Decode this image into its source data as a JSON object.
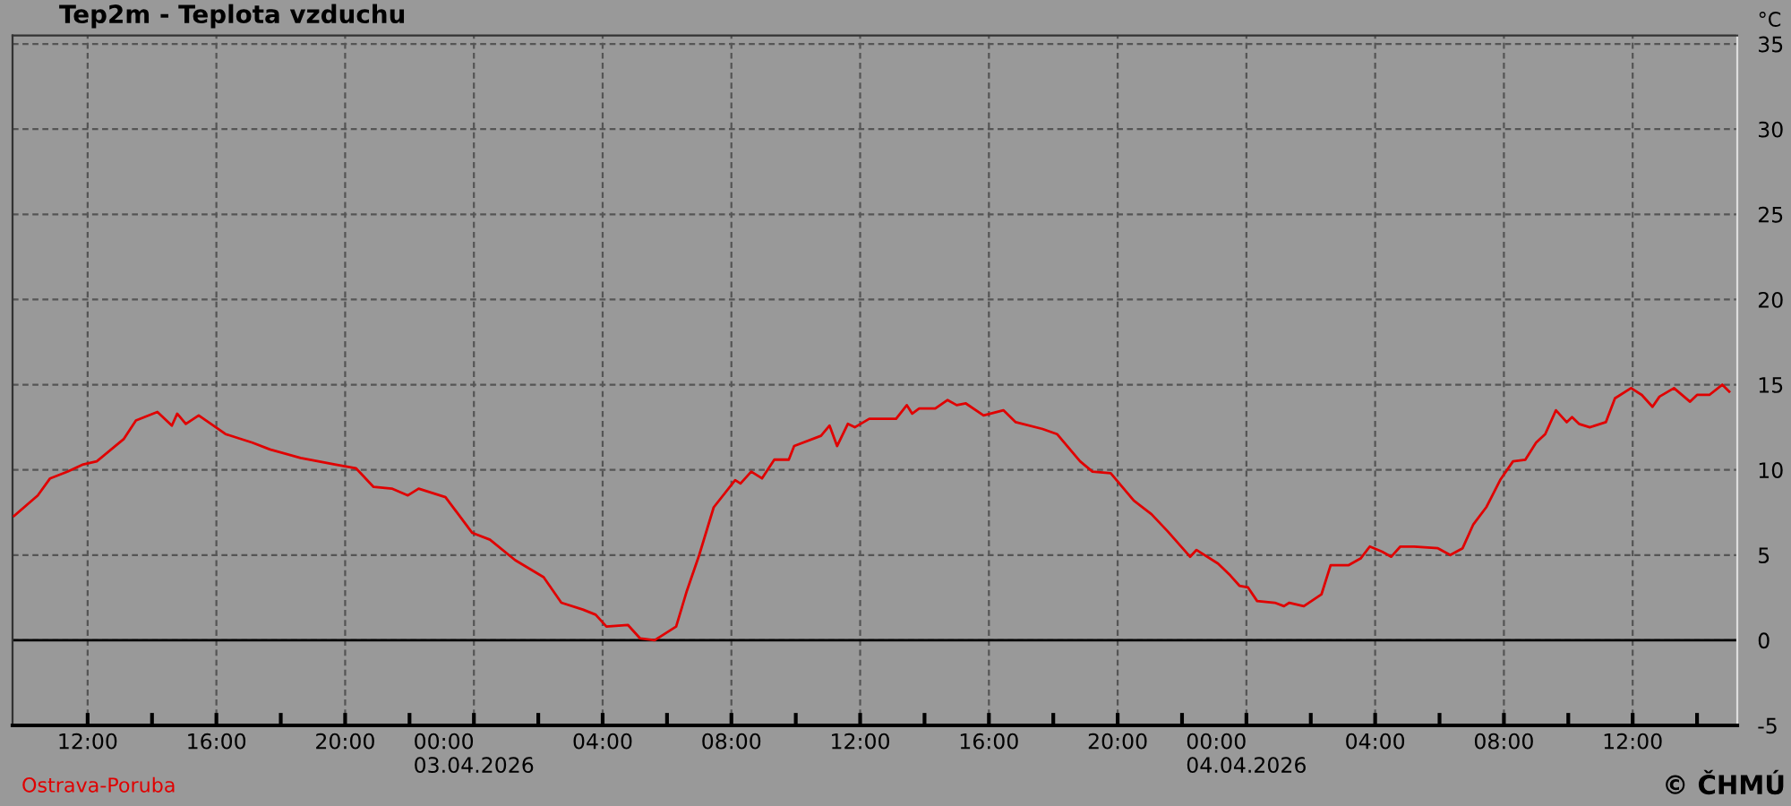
{
  "chart_data": {
    "type": "line",
    "title": "Tep2m - Teplota vzduchu",
    "ylabel": "°C",
    "annotations": [
      "Ostrava-Poruba",
      "© ČHMÚ"
    ],
    "x": [
      "2026-04-02T09:43",
      "2026-04-02T10:27",
      "2026-04-02T10:50",
      "2026-04-02T11:23",
      "2026-04-02T11:50",
      "2026-04-02T12:17",
      "2026-04-02T13:07",
      "2026-04-02T13:30",
      "2026-04-02T14:10",
      "2026-04-02T14:37",
      "2026-04-02T14:47",
      "2026-04-02T15:03",
      "2026-04-02T15:27",
      "2026-04-02T15:50",
      "2026-04-02T16:17",
      "2026-04-02T17:07",
      "2026-04-02T17:40",
      "2026-04-02T18:37",
      "2026-04-02T19:43",
      "2026-04-02T20:20",
      "2026-04-02T20:53",
      "2026-04-02T21:27",
      "2026-04-02T21:57",
      "2026-04-02T22:17",
      "2026-04-02T23:07",
      "2026-04-02T23:57",
      "2026-04-03T00:30",
      "2026-04-03T01:17",
      "2026-04-03T02:10",
      "2026-04-03T02:43",
      "2026-04-03T03:23",
      "2026-04-03T03:47",
      "2026-04-03T04:07",
      "2026-04-03T04:47",
      "2026-04-03T05:10",
      "2026-04-03T05:37",
      "2026-04-03T06:17",
      "2026-04-03T06:37",
      "2026-04-03T07:00",
      "2026-04-03T07:27",
      "2026-04-03T08:07",
      "2026-04-03T08:17",
      "2026-04-03T08:37",
      "2026-04-03T08:57",
      "2026-04-03T09:20",
      "2026-04-03T09:47",
      "2026-04-03T09:57",
      "2026-04-03T10:47",
      "2026-04-03T11:03",
      "2026-04-03T11:17",
      "2026-04-03T11:37",
      "2026-04-03T11:50",
      "2026-04-03T12:17",
      "2026-04-03T13:07",
      "2026-04-03T13:27",
      "2026-04-03T13:37",
      "2026-04-03T13:50",
      "2026-04-03T14:20",
      "2026-04-03T14:43",
      "2026-04-03T15:00",
      "2026-04-03T15:17",
      "2026-04-03T15:50",
      "2026-04-03T16:27",
      "2026-04-03T16:50",
      "2026-04-03T17:40",
      "2026-04-03T18:07",
      "2026-04-03T18:50",
      "2026-04-03T19:13",
      "2026-04-03T19:47",
      "2026-04-03T20:30",
      "2026-04-03T21:03",
      "2026-04-03T21:33",
      "2026-04-03T22:15",
      "2026-04-03T22:27",
      "2026-04-03T23:07",
      "2026-04-03T23:30",
      "2026-04-03T23:47",
      "2026-04-04T00:03",
      "2026-04-04T00:20",
      "2026-04-04T00:53",
      "2026-04-04T01:10",
      "2026-04-04T01:20",
      "2026-04-04T01:47",
      "2026-04-04T02:20",
      "2026-04-04T02:37",
      "2026-04-04T03:10",
      "2026-04-04T03:33",
      "2026-04-04T03:50",
      "2026-04-04T04:13",
      "2026-04-04T04:30",
      "2026-04-04T04:47",
      "2026-04-04T05:13",
      "2026-04-04T05:57",
      "2026-04-04T06:20",
      "2026-04-04T06:43",
      "2026-04-04T07:03",
      "2026-04-04T07:27",
      "2026-04-04T07:53",
      "2026-04-04T08:17",
      "2026-04-04T08:40",
      "2026-04-04T09:00",
      "2026-04-04T09:17",
      "2026-04-04T09:37",
      "2026-04-04T09:57",
      "2026-04-04T10:07",
      "2026-04-04T10:20",
      "2026-04-04T10:40",
      "2026-04-04T11:10",
      "2026-04-04T11:27",
      "2026-04-04T11:57",
      "2026-04-04T12:17",
      "2026-04-04T12:37",
      "2026-04-04T12:50",
      "2026-04-04T13:17",
      "2026-04-04T13:47",
      "2026-04-04T14:00",
      "2026-04-04T14:23",
      "2026-04-04T14:47",
      "2026-04-04T15:00"
    ],
    "series": [
      {
        "color": "#e00000",
        "values": [
          7.3,
          8.5,
          9.5,
          9.9,
          10.3,
          10.5,
          11.8,
          12.9,
          13.4,
          12.6,
          13.3,
          12.7,
          13.2,
          12.7,
          12.1,
          11.6,
          11.2,
          10.7,
          10.3,
          10.1,
          9.0,
          8.9,
          8.5,
          8.9,
          8.4,
          6.3,
          5.9,
          4.7,
          3.7,
          2.2,
          1.8,
          1.5,
          0.8,
          0.9,
          0.1,
          0.0,
          0.8,
          2.9,
          5.0,
          7.8,
          9.4,
          9.2,
          9.9,
          9.5,
          10.6,
          10.6,
          11.4,
          12.0,
          12.6,
          11.4,
          12.7,
          12.5,
          13.0,
          13.0,
          13.8,
          13.3,
          13.6,
          13.6,
          14.1,
          13.8,
          13.9,
          13.2,
          13.5,
          12.8,
          12.4,
          12.1,
          10.5,
          9.9,
          9.8,
          8.2,
          7.4,
          6.4,
          4.9,
          5.3,
          4.5,
          3.8,
          3.2,
          3.1,
          2.3,
          2.2,
          2.0,
          2.2,
          2.0,
          2.7,
          4.4,
          4.4,
          4.8,
          5.5,
          5.2,
          4.9,
          5.5,
          5.5,
          5.4,
          5.0,
          5.4,
          6.8,
          7.8,
          9.4,
          10.5,
          10.6,
          11.6,
          12.1,
          13.5,
          12.8,
          13.1,
          12.7,
          12.5,
          12.8,
          14.2,
          14.8,
          14.4,
          13.7,
          14.3,
          14.8,
          14.0,
          14.4,
          14.4,
          15.0,
          14.6
        ]
      }
    ],
    "xlim": [
      "2026-04-02T09:40",
      "2026-04-04T15:15"
    ],
    "xticks": [
      {
        "value": "2026-04-02T12:00",
        "label": "12:00"
      },
      {
        "value": "2026-04-02T14:00",
        "label": null
      },
      {
        "value": "2026-04-02T16:00",
        "label": "16:00"
      },
      {
        "value": "2026-04-02T18:00",
        "label": null
      },
      {
        "value": "2026-04-02T20:00",
        "label": "20:00"
      },
      {
        "value": "2026-04-02T22:00",
        "label": null
      },
      {
        "value": "2026-04-03T00:00",
        "label": "00:00\n03.04.2026"
      },
      {
        "value": "2026-04-03T02:00",
        "label": null
      },
      {
        "value": "2026-04-03T04:00",
        "label": "04:00"
      },
      {
        "value": "2026-04-03T06:00",
        "label": null
      },
      {
        "value": "2026-04-03T08:00",
        "label": "08:00"
      },
      {
        "value": "2026-04-03T10:00",
        "label": null
      },
      {
        "value": "2026-04-03T12:00",
        "label": "12:00"
      },
      {
        "value": "2026-04-03T14:00",
        "label": null
      },
      {
        "value": "2026-04-03T16:00",
        "label": "16:00"
      },
      {
        "value": "2026-04-03T18:00",
        "label": null
      },
      {
        "value": "2026-04-03T20:00",
        "label": "20:00"
      },
      {
        "value": "2026-04-03T22:00",
        "label": null
      },
      {
        "value": "2026-04-04T00:00",
        "label": "00:00\n04.04.2026"
      },
      {
        "value": "2026-04-04T02:00",
        "label": null
      },
      {
        "value": "2026-04-04T04:00",
        "label": "04:00"
      },
      {
        "value": "2026-04-04T06:00",
        "label": null
      },
      {
        "value": "2026-04-04T08:00",
        "label": "08:00"
      },
      {
        "value": "2026-04-04T10:00",
        "label": null
      },
      {
        "value": "2026-04-04T12:00",
        "label": "12:00"
      },
      {
        "value": "2026-04-04T14:00",
        "label": null
      }
    ],
    "ylim": [
      -5,
      35.5
    ],
    "yticks": [
      -5,
      0,
      5,
      10,
      15,
      20,
      25,
      30,
      35
    ],
    "ref_lines": [
      {
        "axis": "y",
        "value": 0,
        "color": "#000000"
      }
    ],
    "grid": true,
    "marker": "none",
    "line_style": "solid"
  }
}
